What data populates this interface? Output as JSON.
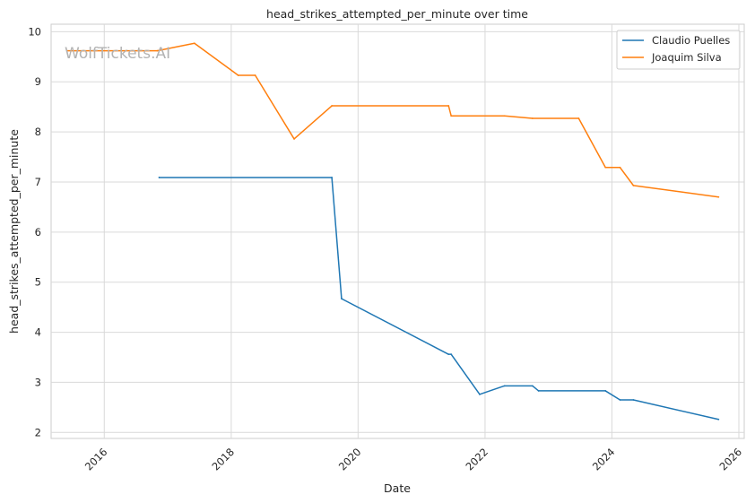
{
  "chart_data": {
    "type": "line",
    "title": "head_strikes_attempted_per_minute over time",
    "xlabel": "Date",
    "ylabel": "head_strikes_attempted_per_minute",
    "watermark": "WolfTickets.AI",
    "xlim": [
      "2015-03-01",
      "2026-02-01"
    ],
    "ylim": [
      1.88,
      10.15
    ],
    "x_ticks": [
      "2016",
      "2018",
      "2020",
      "2022",
      "2024",
      "2026"
    ],
    "y_ticks": [
      "2",
      "3",
      "4",
      "5",
      "6",
      "7",
      "8",
      "9",
      "10"
    ],
    "grid": true,
    "legend_position": "top-right",
    "series": [
      {
        "name": "Claudio Puelles",
        "color": "#1f77b4",
        "points": [
          [
            "2016-11-12",
            7.09
          ],
          [
            "2019-08-03",
            7.09
          ],
          [
            "2019-09-28",
            4.67
          ],
          [
            "2021-06-05",
            3.56
          ],
          [
            "2021-06-20",
            3.56
          ],
          [
            "2021-12-01",
            2.76
          ],
          [
            "2022-04-23",
            2.93
          ],
          [
            "2022-10-01",
            2.93
          ],
          [
            "2022-11-05",
            2.83
          ],
          [
            "2023-11-25",
            2.83
          ],
          [
            "2024-02-17",
            2.65
          ],
          [
            "2024-05-04",
            2.65
          ],
          [
            "2025-09-06",
            2.26
          ]
        ]
      },
      {
        "name": "Joaquim Silva",
        "color": "#ff7f0e",
        "points": [
          [
            "2015-06-01",
            9.62
          ],
          [
            "2016-11-01",
            9.62
          ],
          [
            "2017-06-03",
            9.77
          ],
          [
            "2018-02-10",
            9.13
          ],
          [
            "2018-05-19",
            9.13
          ],
          [
            "2018-12-29",
            7.86
          ],
          [
            "2019-08-03",
            8.52
          ],
          [
            "2021-06-05",
            8.52
          ],
          [
            "2021-06-20",
            8.32
          ],
          [
            "2022-04-23",
            8.32
          ],
          [
            "2022-10-01",
            8.27
          ],
          [
            "2023-06-24",
            8.27
          ],
          [
            "2023-11-25",
            7.29
          ],
          [
            "2024-02-17",
            7.29
          ],
          [
            "2024-05-04",
            6.93
          ],
          [
            "2025-09-06",
            6.7
          ]
        ]
      }
    ]
  }
}
